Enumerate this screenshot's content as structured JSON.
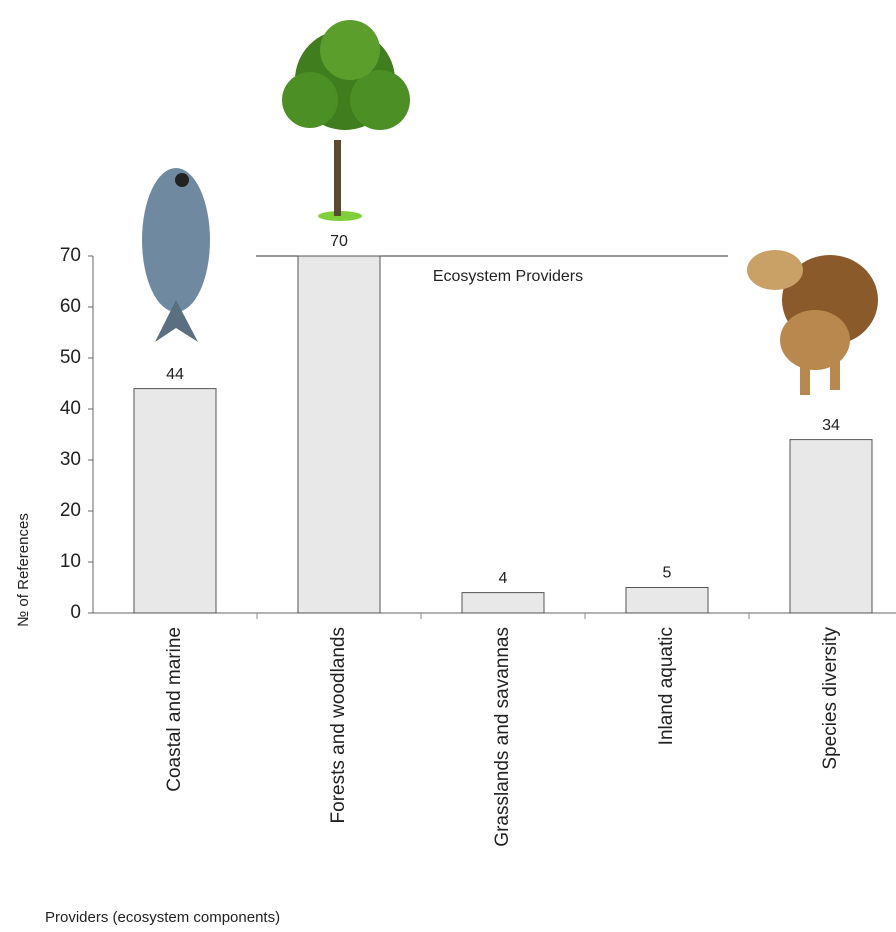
{
  "chart_data": {
    "type": "bar",
    "annotation": "Ecosystem Providers",
    "x_label": "Providers (ecosystem components)",
    "y_label": "№ of  References",
    "categories": [
      "Coastal and marine",
      "Forests and woodlands",
      "Grasslands and savannas",
      "Inland aquatic",
      "Species diversity"
    ],
    "values": [
      44,
      70,
      4,
      5,
      34
    ],
    "color": "#e8e8e8",
    "ylim": [
      0,
      70
    ],
    "yticks": [
      0,
      10,
      20,
      30,
      40,
      50,
      60,
      70
    ],
    "grid": false
  }
}
